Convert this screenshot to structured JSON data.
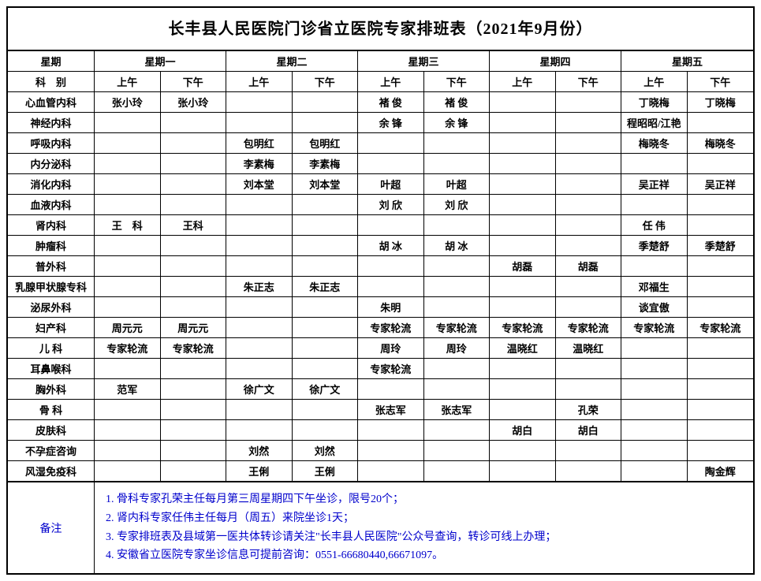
{
  "title": "长丰县人民医院门诊省立医院专家排班表（2021年9月份）",
  "header": {
    "weekday": "星期",
    "days": [
      "星期一",
      "星期二",
      "星期三",
      "星期四",
      "星期五"
    ],
    "dept_label": "科　别",
    "am": "上午",
    "pm": "下午"
  },
  "departments": [
    {
      "name": "心血管内科",
      "slots": [
        "张小玲",
        "张小玲",
        "",
        "",
        "褚 俊",
        "褚 俊",
        "",
        "",
        "丁晓梅",
        "丁晓梅"
      ]
    },
    {
      "name": "神经内科",
      "slots": [
        "",
        "",
        "",
        "",
        "余 锋",
        "余 锋",
        "",
        "",
        "程昭昭/江艳",
        ""
      ]
    },
    {
      "name": "呼吸内科",
      "slots": [
        "",
        "",
        "包明红",
        "包明红",
        "",
        "",
        "",
        "",
        "梅晓冬",
        "梅晓冬"
      ]
    },
    {
      "name": "内分泌科",
      "slots": [
        "",
        "",
        "李素梅",
        "李素梅",
        "",
        "",
        "",
        "",
        "",
        ""
      ]
    },
    {
      "name": "消化内科",
      "slots": [
        "",
        "",
        "刘本堂",
        "刘本堂",
        "叶超",
        "叶超",
        "",
        "",
        "吴正祥",
        "吴正祥"
      ]
    },
    {
      "name": "血液内科",
      "slots": [
        "",
        "",
        "",
        "",
        "刘 欣",
        "刘 欣",
        "",
        "",
        "",
        ""
      ]
    },
    {
      "name": "肾内科",
      "slots": [
        "王　科",
        "王科",
        "",
        "",
        "",
        "",
        "",
        "",
        "任 伟",
        ""
      ]
    },
    {
      "name": "肿瘤科",
      "slots": [
        "",
        "",
        "",
        "",
        "胡 冰",
        "胡 冰",
        "",
        "",
        "季楚舒",
        "季楚舒"
      ]
    },
    {
      "name": "普外科",
      "slots": [
        "",
        "",
        "",
        "",
        "",
        "",
        "胡磊",
        "胡磊",
        "",
        ""
      ]
    },
    {
      "name": "乳腺甲状腺专科",
      "slots": [
        "",
        "",
        "朱正志",
        "朱正志",
        "",
        "",
        "",
        "",
        "邓福生",
        ""
      ]
    },
    {
      "name": "泌尿外科",
      "slots": [
        "",
        "",
        "",
        "",
        "朱明",
        "",
        "",
        "",
        "谈宜傲",
        ""
      ]
    },
    {
      "name": "妇产科",
      "slots": [
        "周元元",
        "周元元",
        "",
        "",
        "专家轮流",
        "专家轮流",
        "专家轮流",
        "专家轮流",
        "专家轮流",
        "专家轮流"
      ]
    },
    {
      "name": "儿 科",
      "slots": [
        "专家轮流",
        "专家轮流",
        "",
        "",
        "周玲",
        "周玲",
        "温晓红",
        "温晓红",
        "",
        ""
      ]
    },
    {
      "name": "耳鼻喉科",
      "slots": [
        "",
        "",
        "",
        "",
        "专家轮流",
        "",
        "",
        "",
        "",
        ""
      ]
    },
    {
      "name": "胸外科",
      "slots": [
        "范军",
        "",
        "徐广文",
        "徐广文",
        "",
        "",
        "",
        "",
        "",
        ""
      ]
    },
    {
      "name": "骨 科",
      "slots": [
        "",
        "",
        "",
        "",
        "张志军",
        "张志军",
        "",
        "孔荣",
        "",
        ""
      ]
    },
    {
      "name": "皮肤科",
      "slots": [
        "",
        "",
        "",
        "",
        "",
        "",
        "胡白",
        "胡白",
        "",
        ""
      ]
    },
    {
      "name": "不孕症咨询",
      "slots": [
        "",
        "",
        "刘然",
        "刘然",
        "",
        "",
        "",
        "",
        "",
        ""
      ]
    },
    {
      "name": "风湿免疫科",
      "slots": [
        "",
        "",
        "王俐",
        "王俐",
        "",
        "",
        "",
        "",
        "",
        "陶金辉"
      ]
    }
  ],
  "notes": {
    "label": "备注",
    "lines": [
      "1. 骨科专家孔荣主任每月第三周星期四下午坐诊，限号20个；",
      "2. 肾内科专家任伟主任每月（周五）来院坐诊1天；",
      "3. 专家排班表及县域第一医共体转诊请关注\"长丰县人民医院\"公众号查询，转诊可线上办理；",
      "4. 安徽省立医院专家坐诊信息可提前咨询：0551-66680440,66671097。"
    ]
  },
  "style": {
    "title_fontsize": 20,
    "cell_fontsize": 13,
    "notes_color": "#0000cc",
    "border_color": "#000000",
    "col_widths": {
      "dept": 110,
      "slot": "1fr"
    }
  }
}
